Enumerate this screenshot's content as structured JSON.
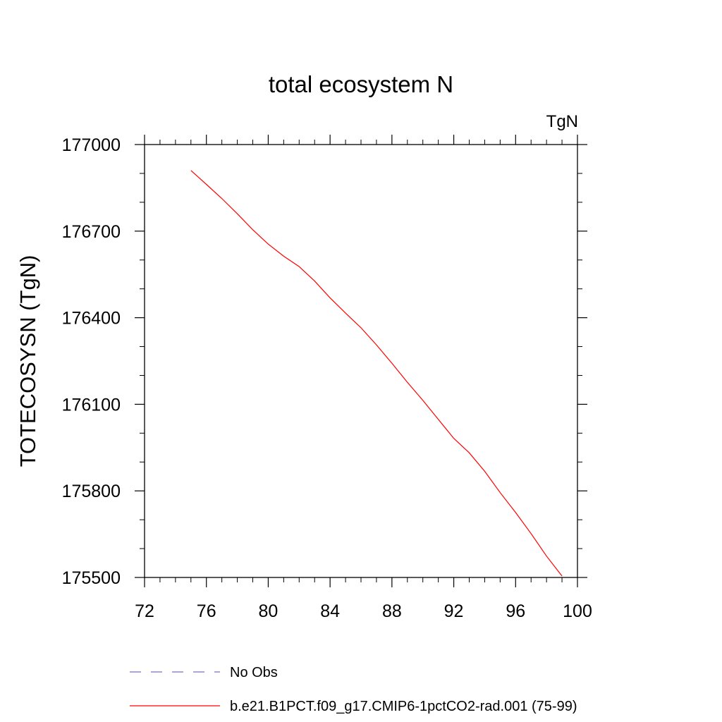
{
  "chart_data": {
    "type": "line",
    "title": "total ecosystem N",
    "units_label": "TgN",
    "xlabel": "",
    "ylabel": "TOTECOSYSN  (TgN)",
    "xlim": [
      72,
      100
    ],
    "ylim": [
      175500,
      177000
    ],
    "xticks": [
      72,
      76,
      80,
      84,
      88,
      92,
      96,
      100
    ],
    "xtick_labels": [
      "72",
      "76",
      "80",
      "84",
      "88",
      "92",
      "96",
      "100"
    ],
    "yticks": [
      175500,
      175800,
      176100,
      176400,
      176700,
      177000
    ],
    "ytick_labels": [
      "175500",
      "175800",
      "176100",
      "176400",
      "176700",
      "177000"
    ],
    "grid": false,
    "legend_position": "bottom",
    "series": [
      {
        "name": "b.e21.B1PCT.f09_g17.CMIP6-1pctCO2-rad.001 (75-99)",
        "color": "#ff0000",
        "style": "solid",
        "x": [
          75,
          76,
          77,
          78,
          79,
          80,
          81,
          82,
          83,
          84,
          85,
          86,
          87,
          88,
          89,
          90,
          91,
          92,
          93,
          94,
          95,
          96,
          97,
          98,
          99
        ],
        "y": [
          176910,
          176862,
          176813,
          176760,
          176705,
          176655,
          176613,
          176577,
          176527,
          176469,
          176416,
          176365,
          176306,
          176242,
          176176,
          176114,
          176048,
          175982,
          175932,
          175868,
          175794,
          175725,
          175652,
          175574,
          175505
        ]
      }
    ],
    "legend": [
      {
        "label": "No Obs",
        "color": "#7a70c0",
        "style": "dashed"
      },
      {
        "label": "b.e21.B1PCT.f09_g17.CMIP6-1pctCO2-rad.001 (75-99)",
        "color": "#ff0000",
        "style": "solid"
      }
    ]
  }
}
